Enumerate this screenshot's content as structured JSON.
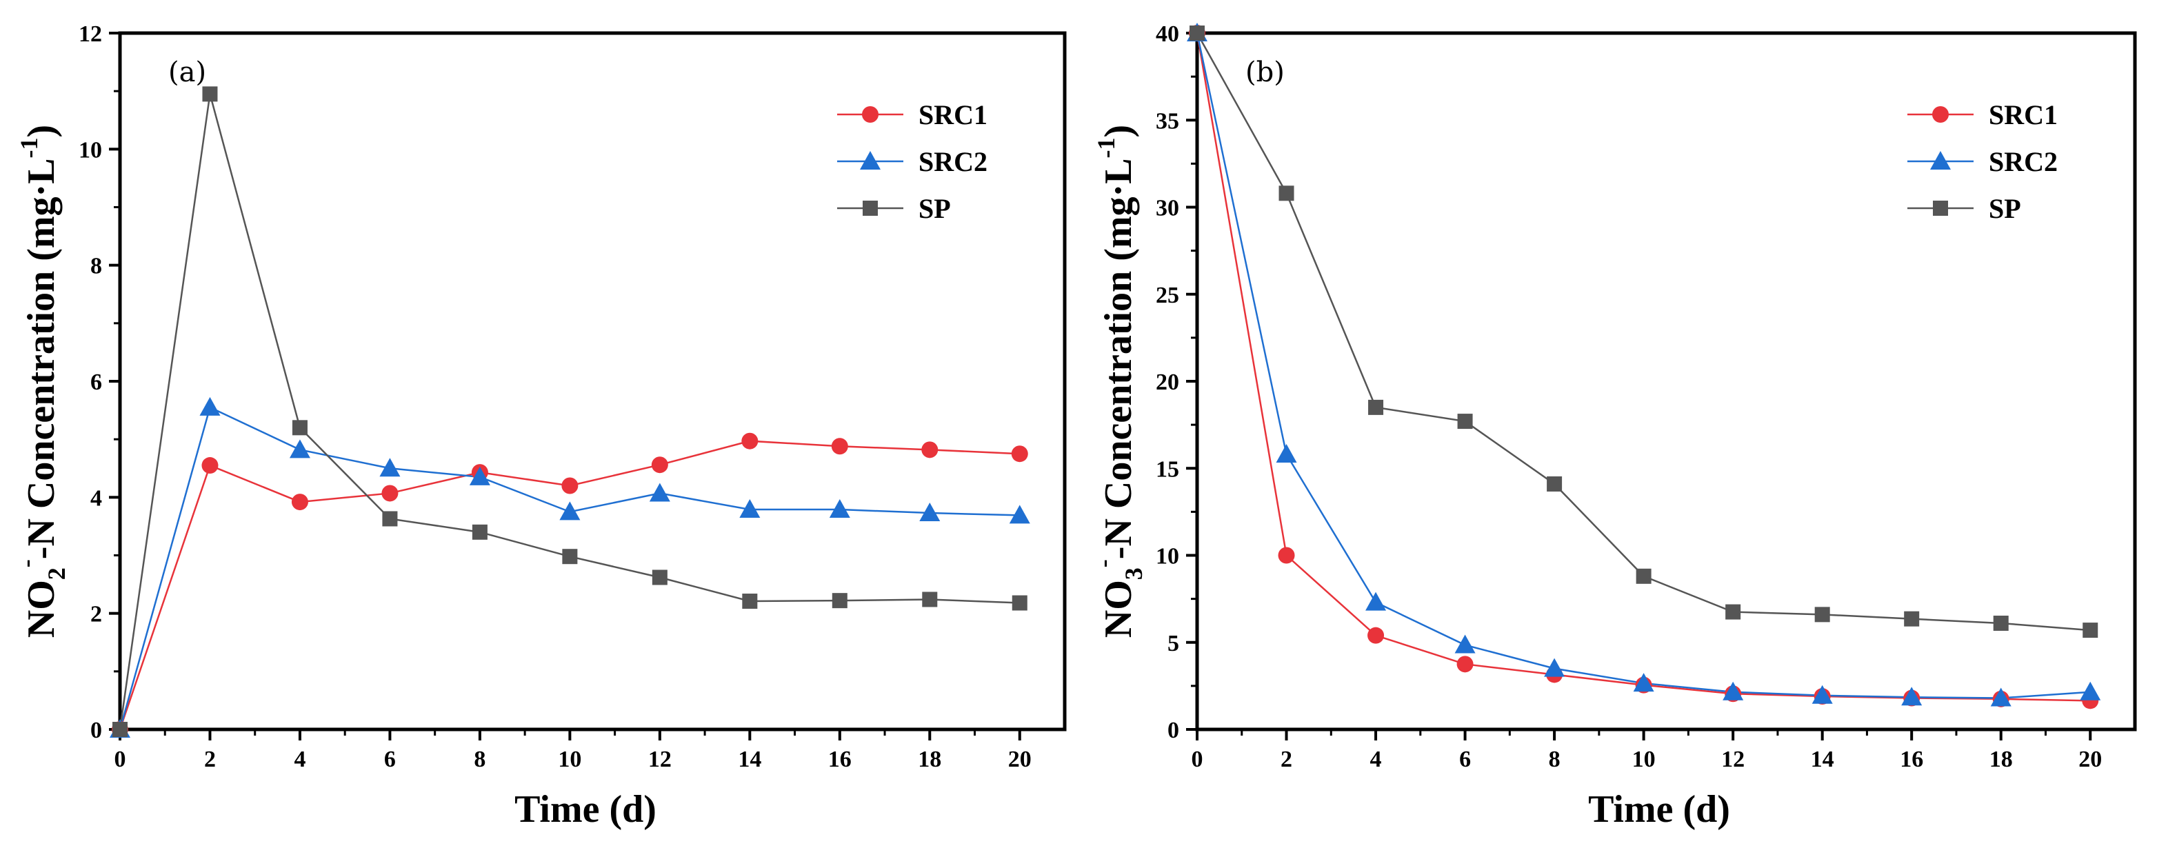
{
  "chart_data": [
    {
      "type": "line",
      "panel_label": "(a)",
      "xlabel": "Time (d)",
      "ylabel": {
        "prefix": "NO",
        "sub1": "2",
        "sup1": "-",
        "middle": "-N Concentration (mg·L",
        "sup2": "-1",
        "suffix": ")"
      },
      "xlim": [
        0,
        21
      ],
      "ylim": [
        0,
        12
      ],
      "x_ticks": [
        0,
        2,
        4,
        6,
        8,
        10,
        12,
        14,
        16,
        18,
        20
      ],
      "y_ticks": [
        0,
        2,
        4,
        6,
        8,
        10,
        12
      ],
      "x": [
        0,
        2,
        4,
        6,
        8,
        10,
        12,
        14,
        16,
        18,
        20
      ],
      "series": [
        {
          "name": "SRC1",
          "color": "#e8333a",
          "marker": "circle",
          "values": [
            0,
            4.55,
            3.92,
            4.07,
            4.43,
            4.2,
            4.56,
            4.97,
            4.88,
            4.82,
            4.75
          ]
        },
        {
          "name": "SRC2",
          "color": "#1f6fd1",
          "marker": "triangle",
          "values": [
            0,
            5.55,
            4.82,
            4.5,
            4.35,
            3.75,
            4.07,
            3.79,
            3.79,
            3.73,
            3.69
          ]
        },
        {
          "name": "SP",
          "color": "#555555",
          "marker": "square",
          "values": [
            0,
            10.95,
            5.2,
            3.63,
            3.4,
            2.98,
            2.62,
            2.21,
            2.22,
            2.24,
            2.18
          ]
        }
      ],
      "legend_position": "top-right"
    },
    {
      "type": "line",
      "panel_label": "(b)",
      "xlabel": "Time (d)",
      "ylabel": {
        "prefix": "NO",
        "sub1": "3",
        "sup1": "-",
        "middle": "-N Concentration (mg·L",
        "sup2": "-1",
        "suffix": ")"
      },
      "xlim": [
        0,
        21
      ],
      "ylim": [
        0,
        40
      ],
      "x_ticks": [
        0,
        2,
        4,
        6,
        8,
        10,
        12,
        14,
        16,
        18,
        20
      ],
      "y_ticks": [
        0,
        5,
        10,
        15,
        20,
        25,
        30,
        35,
        40
      ],
      "x": [
        0,
        2,
        4,
        6,
        8,
        10,
        12,
        14,
        16,
        18,
        20
      ],
      "series": [
        {
          "name": "SRC1",
          "color": "#e8333a",
          "marker": "circle",
          "values": [
            40,
            10.0,
            5.4,
            3.75,
            3.15,
            2.55,
            2.05,
            1.9,
            1.8,
            1.75,
            1.65
          ]
        },
        {
          "name": "SRC2",
          "color": "#1f6fd1",
          "marker": "triangle",
          "values": [
            40,
            15.8,
            7.3,
            4.85,
            3.5,
            2.65,
            2.15,
            1.95,
            1.85,
            1.8,
            2.15
          ]
        },
        {
          "name": "SP",
          "color": "#555555",
          "marker": "square",
          "values": [
            40,
            30.8,
            18.5,
            17.7,
            14.1,
            8.8,
            6.75,
            6.6,
            6.35,
            6.1,
            5.7
          ]
        }
      ],
      "legend_position": "top-right"
    }
  ]
}
